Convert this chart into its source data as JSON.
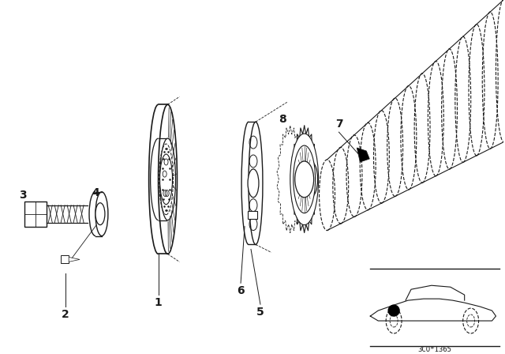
{
  "background_color": "#ffffff",
  "line_color": "#1a1a1a",
  "fig_width": 6.4,
  "fig_height": 4.48,
  "dpi": 100,
  "title_code": "3CO*1365"
}
